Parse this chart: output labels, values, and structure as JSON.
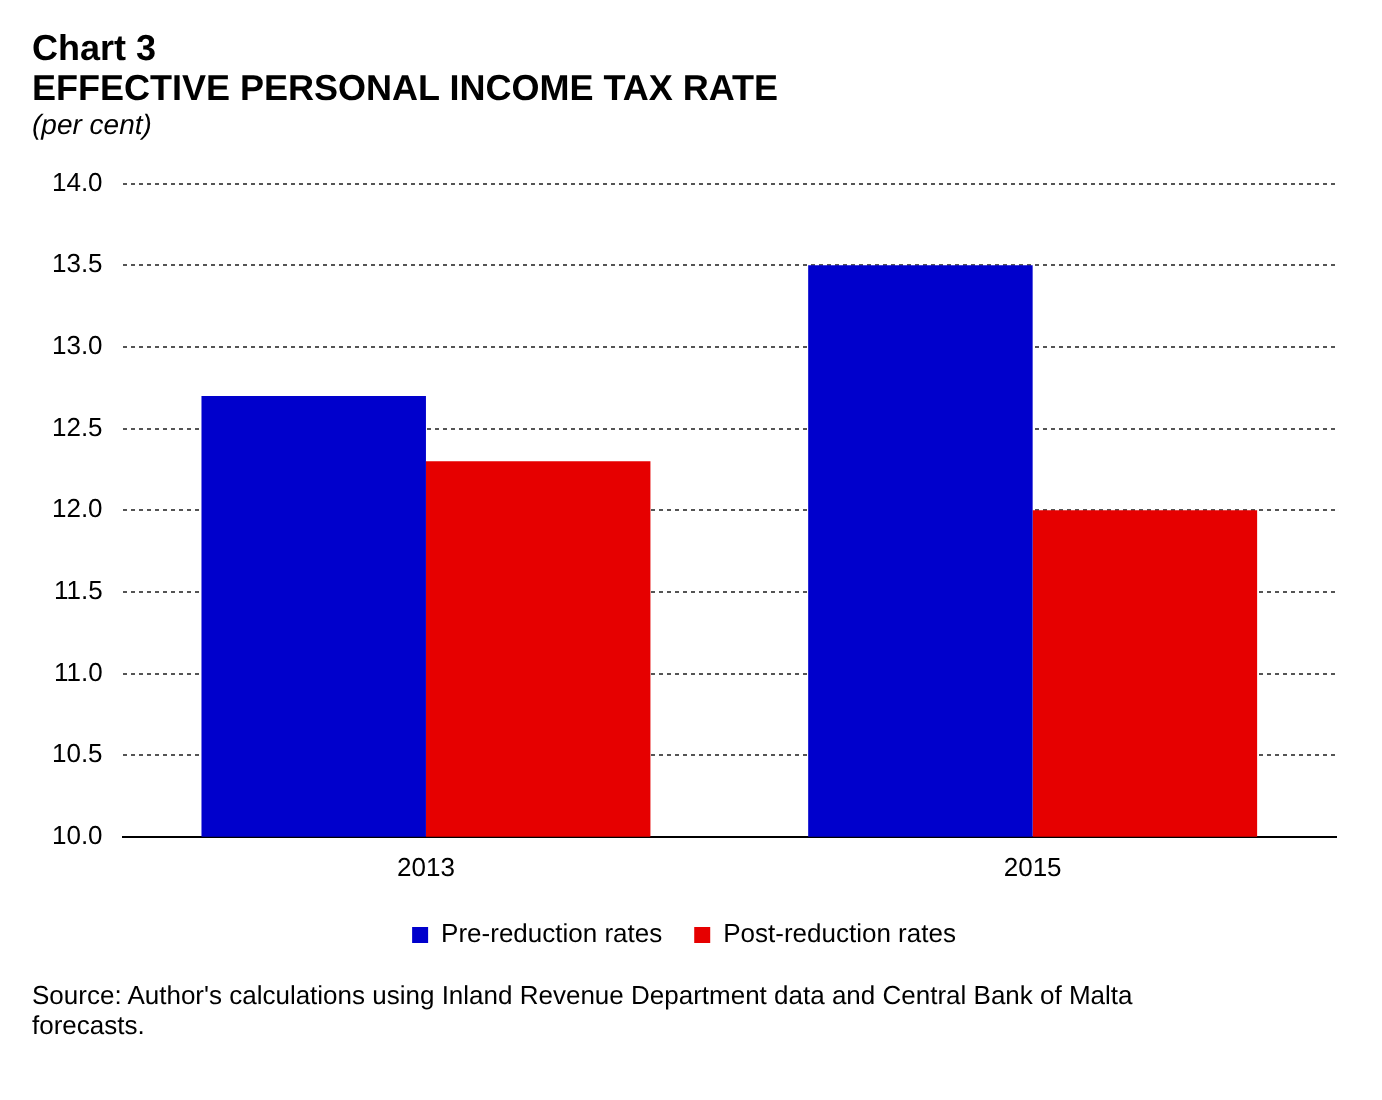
{
  "chart_data": {
    "type": "bar",
    "title": "Chart 3",
    "subtitle": "EFFECTIVE PERSONAL INCOME TAX RATE",
    "ylabel": "(per cent)",
    "categories": [
      "2013",
      "2015"
    ],
    "series": [
      {
        "name": "Pre-reduction rates",
        "color": "#0000cc",
        "values": [
          12.7,
          13.5
        ]
      },
      {
        "name": "Post-reduction rates",
        "color": "#e60000",
        "values": [
          12.3,
          12.0
        ]
      }
    ],
    "ylim": [
      10,
      14
    ],
    "yticks": [
      {
        "value": 10,
        "label": "10.0"
      },
      {
        "value": 10.5,
        "label": "10.5"
      },
      {
        "value": 11,
        "label": "11.0"
      },
      {
        "value": 11.5,
        "label": "11.5"
      },
      {
        "value": 12,
        "label": "12.0"
      },
      {
        "value": 12.5,
        "label": "12.5"
      },
      {
        "value": 13,
        "label": "13.0"
      },
      {
        "value": 13.5,
        "label": "13.5"
      },
      {
        "value": 14,
        "label": "14.0"
      }
    ],
    "grid": "y",
    "legend": "bottom",
    "annotations": [
      "Source: Author's calculations using Inland Revenue Department data and Central Bank of Malta forecasts."
    ]
  }
}
